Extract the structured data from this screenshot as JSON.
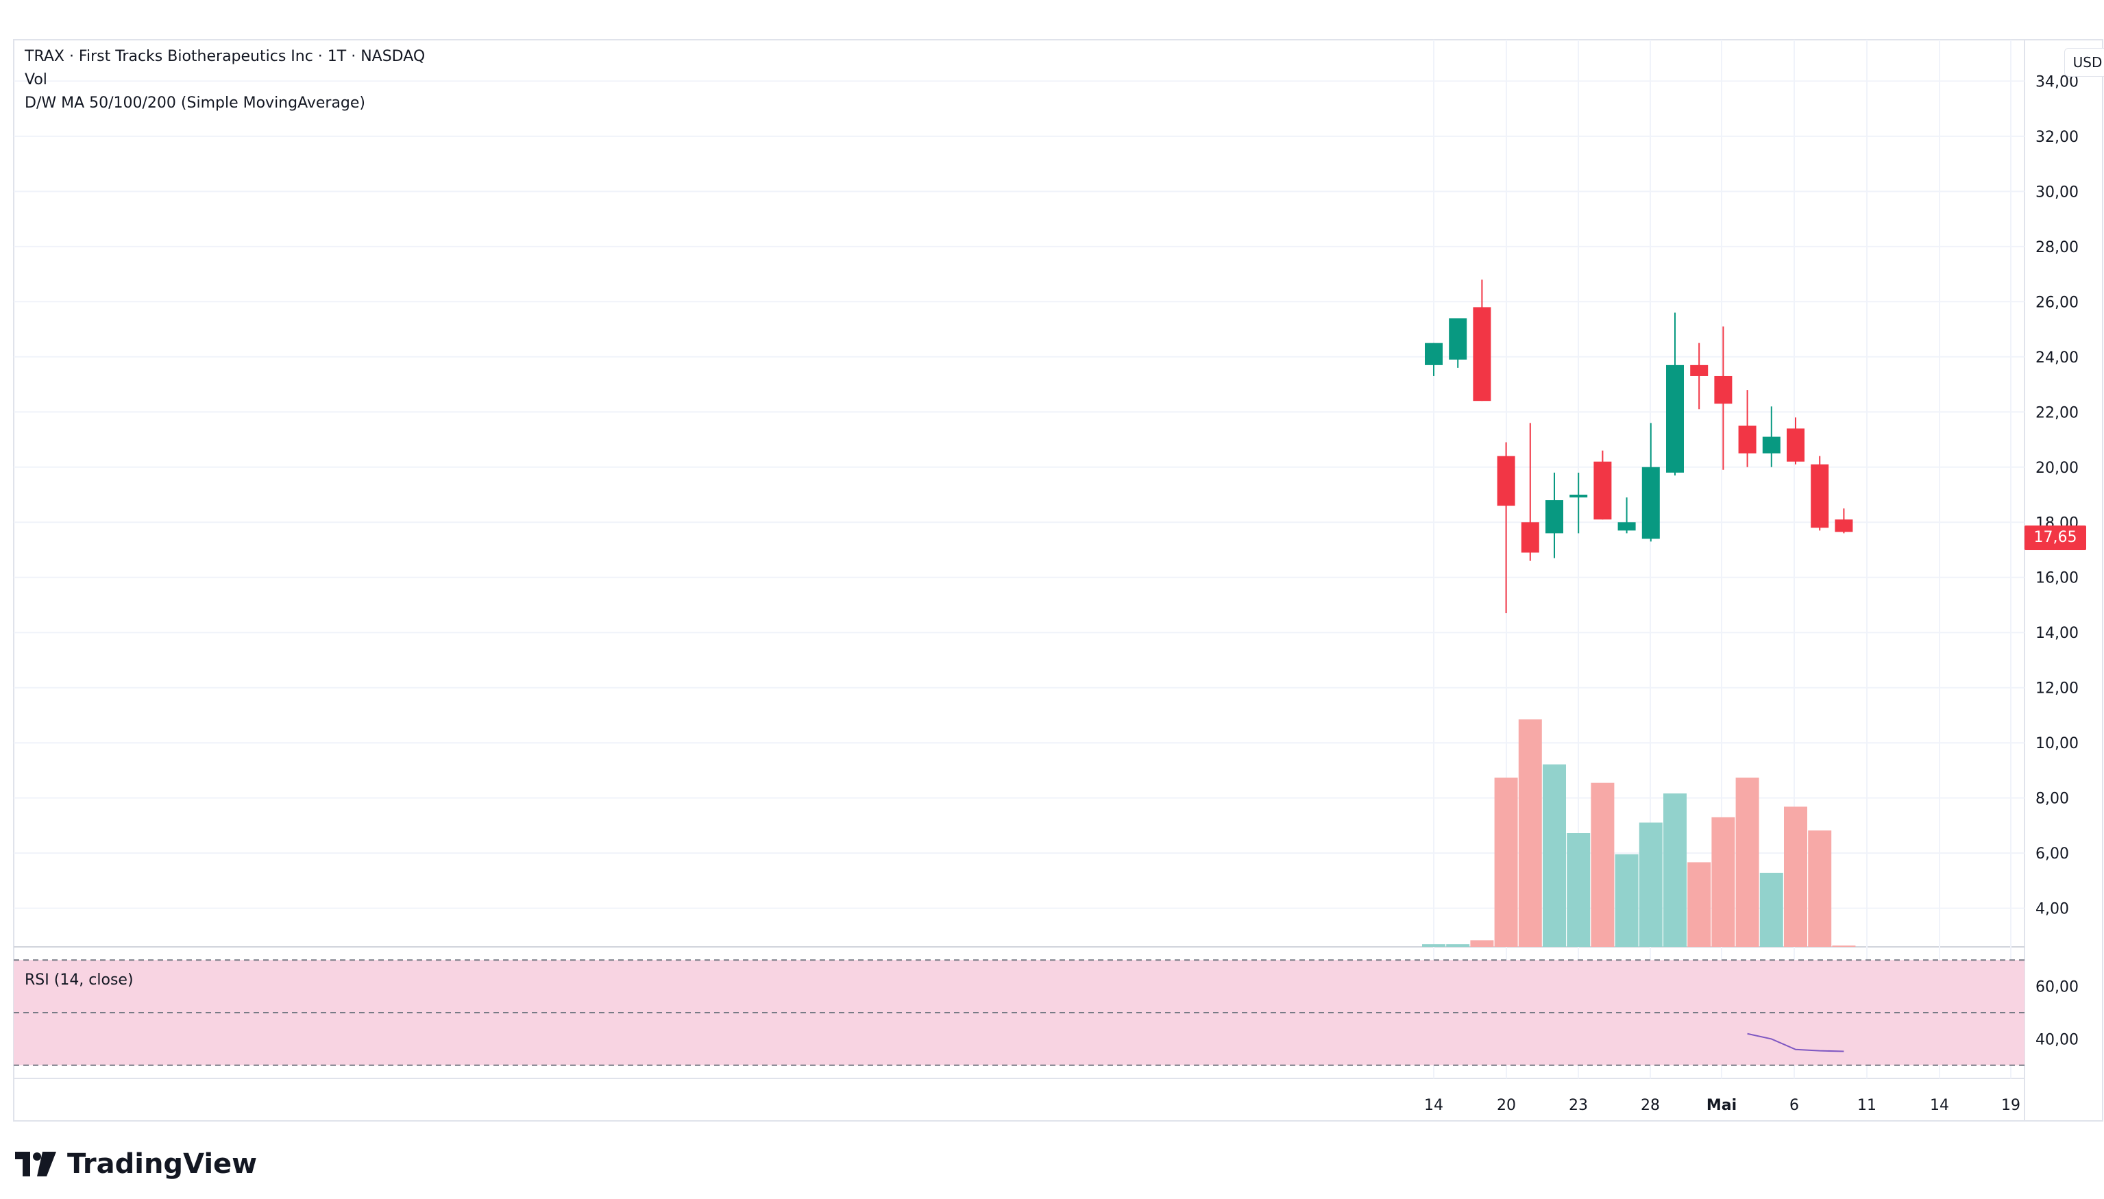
{
  "header": {
    "symbol_line": "TRAX · First Tracks Biotherapeutics Inc · 1T · NASDAQ",
    "vol_label": "Vol",
    "ma_label": "D/W MA 50/100/200 (Simple MovingAverage)",
    "currency": "USD",
    "last_price": "17,65"
  },
  "rsi": {
    "label": "RSI (14, close)"
  },
  "branding": {
    "name": "TradingView"
  },
  "colors": {
    "up": "#089981",
    "down": "#f23645",
    "vol_up": "#92d2cc",
    "vol_down": "#f7a9a7",
    "rsi_band": "#f8d4e2",
    "rsi_line": "#7e57c2"
  },
  "chart_data": [
    {
      "type": "candlestick",
      "title": "TRAX · First Tracks Biotherapeutics Inc · 1T · NASDAQ",
      "price_ticks": [
        "34,00",
        "32,00",
        "30,00",
        "28,00",
        "26,00",
        "24,00",
        "22,00",
        "20,00",
        "18,00",
        "16,00",
        "14,00",
        "12,00",
        "10,00",
        "8,00",
        "6,00",
        "4,00"
      ],
      "price_tick_values": [
        34,
        32,
        30,
        28,
        26,
        24,
        22,
        20,
        18,
        16,
        14,
        12,
        10,
        8,
        6,
        4
      ],
      "ylim": [
        2.6,
        35.5
      ],
      "x_labels": [
        "14",
        "20",
        "23",
        "28",
        "Mai",
        "6",
        "11",
        "14",
        "19"
      ],
      "x_label_bold": [
        false,
        false,
        false,
        false,
        true,
        false,
        false,
        false,
        false
      ],
      "candles": [
        {
          "open": 23.7,
          "high": 24.5,
          "low": 23.3,
          "close": 24.5
        },
        {
          "open": 23.9,
          "high": 25.4,
          "low": 23.6,
          "close": 25.4
        },
        {
          "open": 25.8,
          "high": 26.8,
          "low": 22.4,
          "close": 22.4
        },
        {
          "open": 20.4,
          "high": 20.9,
          "low": 14.7,
          "close": 18.6
        },
        {
          "open": 18.0,
          "high": 21.6,
          "low": 16.6,
          "close": 16.9
        },
        {
          "open": 17.6,
          "high": 19.8,
          "low": 16.7,
          "close": 18.8
        },
        {
          "open": 18.9,
          "high": 19.8,
          "low": 17.6,
          "close": 19.0
        },
        {
          "open": 20.2,
          "high": 20.6,
          "low": 18.1,
          "close": 18.1
        },
        {
          "open": 17.7,
          "high": 18.9,
          "low": 17.6,
          "close": 18.0
        },
        {
          "open": 17.4,
          "high": 21.6,
          "low": 17.3,
          "close": 20.0
        },
        {
          "open": 19.8,
          "high": 25.6,
          "low": 19.7,
          "close": 23.7
        },
        {
          "open": 23.7,
          "high": 24.5,
          "low": 22.1,
          "close": 23.3
        },
        {
          "open": 23.3,
          "high": 25.1,
          "low": 19.9,
          "close": 22.3
        },
        {
          "open": 21.5,
          "high": 22.8,
          "low": 20.0,
          "close": 20.5
        },
        {
          "open": 20.5,
          "high": 22.2,
          "low": 20.0,
          "close": 21.1
        },
        {
          "open": 21.4,
          "high": 21.8,
          "low": 20.1,
          "close": 20.2
        },
        {
          "open": 20.1,
          "high": 20.4,
          "low": 17.7,
          "close": 17.8
        },
        {
          "open": 18.1,
          "high": 18.5,
          "low": 17.6,
          "close": 17.65
        }
      ]
    },
    {
      "type": "bar",
      "title": "Vol",
      "values": [
        0.1,
        0.1,
        0.25,
        6.4,
        8.6,
        6.9,
        4.3,
        6.2,
        3.5,
        4.7,
        5.8,
        3.2,
        4.9,
        6.4,
        2.8,
        5.3,
        4.4,
        0.05
      ],
      "direction": [
        "up",
        "up",
        "down",
        "down",
        "down",
        "up",
        "up",
        "down",
        "up",
        "up",
        "up",
        "down",
        "down",
        "down",
        "up",
        "down",
        "down",
        "down"
      ]
    },
    {
      "type": "line",
      "title": "RSI (14, close)",
      "ticks": [
        "60,00",
        "40,00"
      ],
      "tick_values": [
        60,
        40
      ],
      "ylim": [
        25,
        75
      ],
      "band": [
        70,
        30
      ],
      "midline": 50,
      "values": [
        null,
        null,
        null,
        null,
        null,
        null,
        null,
        null,
        null,
        null,
        null,
        null,
        null,
        42,
        40,
        36,
        35.5,
        35.3
      ]
    }
  ]
}
